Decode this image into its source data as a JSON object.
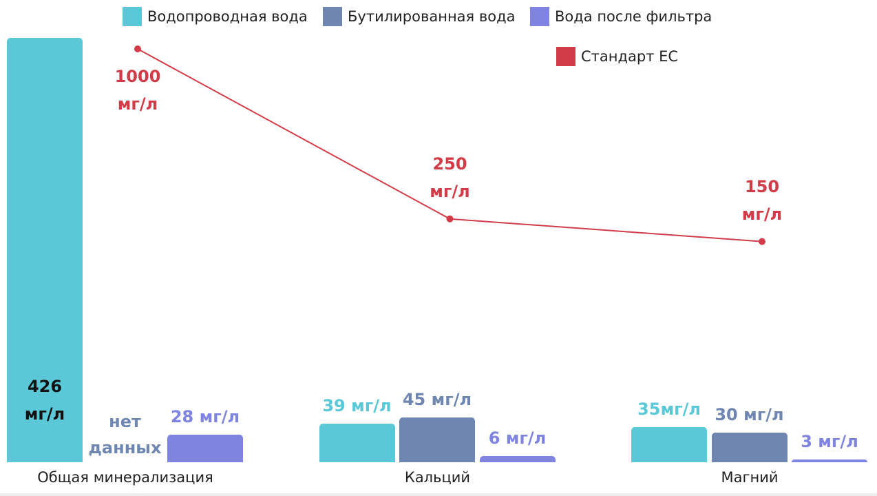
{
  "chart_data": {
    "type": "bar",
    "categories": [
      "Общая минерализация",
      "Кальций",
      "Магний"
    ],
    "series": [
      {
        "name": "Водопроводная вода",
        "color": "#5bc8d8",
        "values": [
          426,
          39,
          35
        ],
        "value_labels": [
          "426 мг/л",
          "39 мг/л",
          "35мг/л"
        ]
      },
      {
        "name": "Бутилированная вода",
        "color": "#6e86b0",
        "values": [
          null,
          45,
          30
        ],
        "value_labels": [
          "нет данных",
          "45 мг/л",
          "30 мг/л"
        ]
      },
      {
        "name": "Вода после фильтра",
        "color": "#7f84e0",
        "values": [
          28,
          6,
          3
        ],
        "value_labels": [
          "28 мг/л",
          "6 мг/л",
          "3 мг/л"
        ]
      },
      {
        "name": "Стандарт ЕС",
        "type": "line",
        "color": "#d13c48",
        "values": [
          1000,
          250,
          150
        ],
        "value_labels": [
          "1000 мг/л",
          "250 мг/л",
          "150 мг/л"
        ]
      }
    ]
  }
}
